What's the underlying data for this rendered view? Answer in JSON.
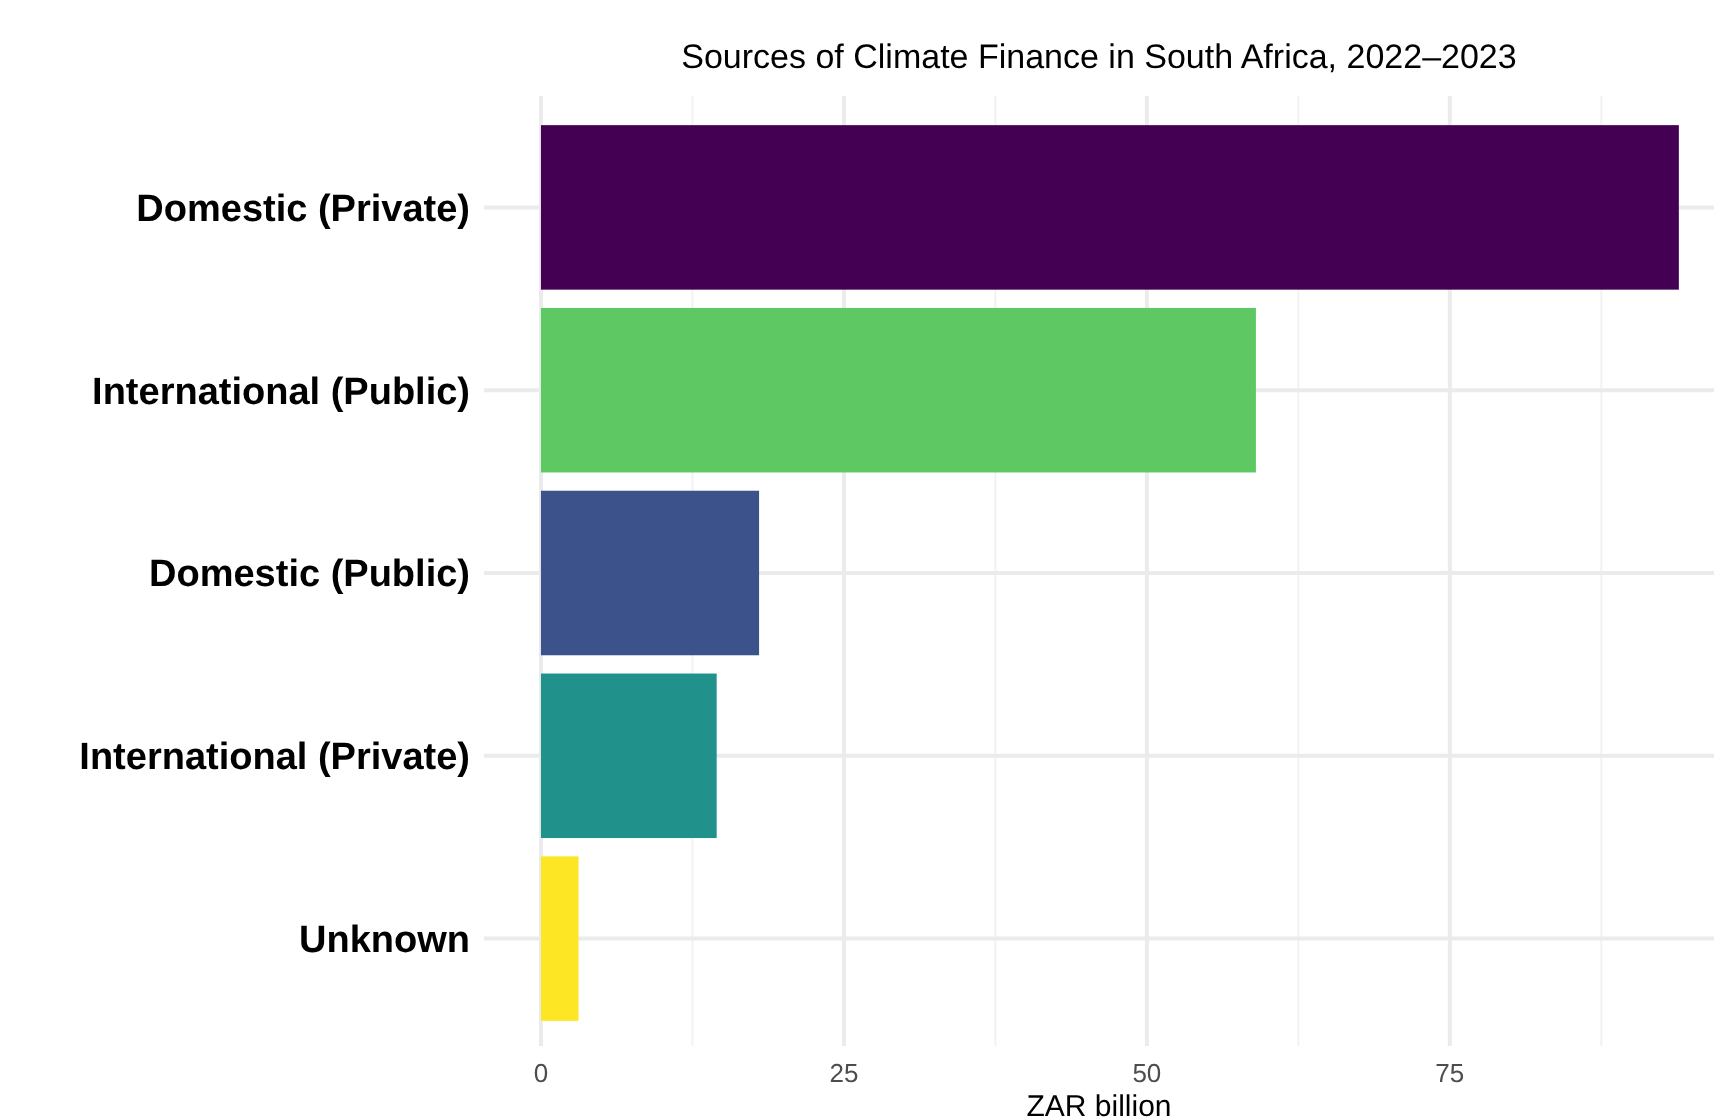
{
  "chart_data": {
    "type": "bar",
    "orientation": "horizontal",
    "title": "Sources of Climate Finance in South Africa, 2022–2023",
    "xlabel": "ZAR billion",
    "categories": [
      "Domestic (Private)",
      "International (Public)",
      "Domestic (Public)",
      "International (Private)",
      "Unknown"
    ],
    "values": [
      93.9,
      59.0,
      18.0,
      14.5,
      3.1
    ],
    "colors": [
      "#440154",
      "#5ec962",
      "#3b528b",
      "#21918c",
      "#fde725"
    ],
    "xlim": [
      -4.7,
      96.8
    ],
    "xticks": [
      0,
      {
        "value": 12.5,
        "label": null
      },
      25,
      {
        "value": 37.5,
        "label": null
      },
      50,
      {
        "value": 62.5,
        "label": null
      },
      75,
      {
        "value": 87.5,
        "label": null
      }
    ],
    "grid": true
  }
}
